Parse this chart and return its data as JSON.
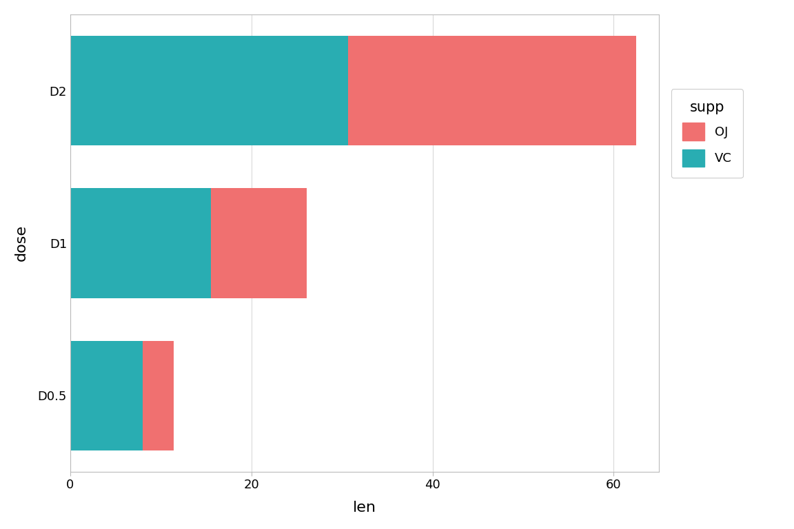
{
  "categories": [
    "D0.5",
    "D1",
    "D2"
  ],
  "vc_values": [
    7.98,
    15.49,
    30.68
  ],
  "oj_values": [
    3.45,
    10.61,
    31.82
  ],
  "oj_color": "#F07070",
  "vc_color": "#29ADB2",
  "background_color": "#FFFFFF",
  "panel_background": "#FFFFFF",
  "grid_color": "#D9D9D9",
  "xlabel": "len",
  "ylabel": "dose",
  "legend_title": "supp",
  "legend_labels": [
    "OJ",
    "VC"
  ],
  "xlim": [
    0,
    65
  ],
  "xticks": [
    0,
    20,
    40,
    60
  ],
  "bar_height": 0.72,
  "axis_label_fontsize": 16,
  "tick_fontsize": 13,
  "legend_fontsize": 13,
  "legend_title_fontsize": 15
}
